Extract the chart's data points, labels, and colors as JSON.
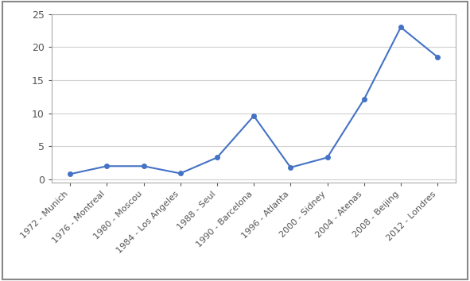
{
  "categories": [
    "1972 - Munich",
    "1976 - Montreal",
    "1980 - Moscou",
    "1984 - Los Angeles",
    "1988 - Seul",
    "1990 - Barcelona",
    "1996 - Atlanta",
    "2000 - Sidney",
    "2004 - Atenas",
    "2008 - Beijing",
    "2012 - Londres"
  ],
  "values": [
    0.8,
    2.0,
    2.0,
    0.9,
    3.3,
    9.6,
    1.8,
    3.3,
    12.1,
    23.0,
    18.5
  ],
  "line_color": "#4472C4",
  "marker": "o",
  "marker_size": 4,
  "ylim": [
    -0.5,
    25
  ],
  "yticks": [
    0,
    5,
    10,
    15,
    20,
    25
  ],
  "xlim": [
    -0.5,
    10.5
  ],
  "background_color": "#ffffff",
  "grid_color": "#d0d0d0",
  "spine_color": "#aaaaaa",
  "tick_label_color": "#555555",
  "label_fontsize": 8,
  "ytick_fontsize": 9
}
